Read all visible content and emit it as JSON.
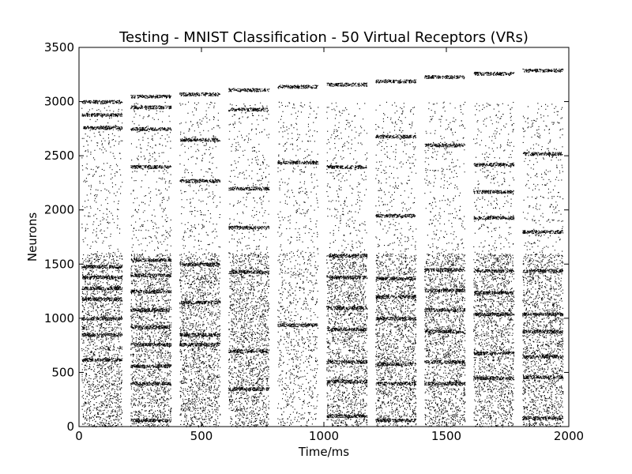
{
  "chart_data": {
    "type": "scatter",
    "title": "Testing - MNIST Classification - 50 Virtual Receptors (VRs)",
    "xlabel": "Time/ms",
    "ylabel": "Neurons",
    "xlim": [
      0,
      2000
    ],
    "ylim": [
      0,
      3500
    ],
    "xticks": [
      0,
      500,
      1000,
      1500,
      2000
    ],
    "yticks": [
      0,
      500,
      1000,
      1500,
      2000,
      2500,
      3000,
      3500
    ],
    "xtick_labels": [
      "0",
      "500",
      "1000",
      "1500",
      "2000"
    ],
    "ytick_labels": [
      "0",
      "500",
      "1000",
      "1500",
      "2000",
      "2500",
      "3000",
      "3500"
    ],
    "grid": false,
    "marker_color": "#000000",
    "stimulus_windows": [
      {
        "start": 0,
        "end": 200
      },
      {
        "start": 200,
        "end": 400
      },
      {
        "start": 400,
        "end": 600
      },
      {
        "start": 600,
        "end": 800
      },
      {
        "start": 800,
        "end": 1000
      },
      {
        "start": 1000,
        "end": 1200
      },
      {
        "start": 1200,
        "end": 1400
      },
      {
        "start": 1400,
        "end": 1600
      },
      {
        "start": 1600,
        "end": 1800
      },
      {
        "start": 1800,
        "end": 2000
      }
    ],
    "approx_dense_bands": [
      {
        "window": 0,
        "neurons": [
          3000,
          2880,
          2760,
          1480,
          1380,
          1280,
          1180,
          1000,
          850,
          620
        ]
      },
      {
        "window": 1,
        "neurons": [
          3050,
          2950,
          2750,
          2400,
          1540,
          1400,
          1250,
          1080,
          920,
          760,
          560,
          400,
          60
        ]
      },
      {
        "window": 2,
        "neurons": [
          3070,
          2650,
          2270,
          1500,
          1150,
          850,
          760
        ]
      },
      {
        "window": 3,
        "neurons": [
          3110,
          2930,
          2200,
          1840,
          1430,
          700,
          350
        ]
      },
      {
        "window": 4,
        "neurons": [
          3140,
          2440,
          940
        ]
      },
      {
        "window": 5,
        "neurons": [
          3160,
          2400,
          1580,
          1380,
          1100,
          900,
          600,
          420,
          100
        ]
      },
      {
        "window": 6,
        "neurons": [
          3190,
          2680,
          1950,
          1370,
          1200,
          1000,
          580,
          400,
          60
        ]
      },
      {
        "window": 7,
        "neurons": [
          3230,
          2600,
          1450,
          1260,
          1080,
          880,
          600,
          400
        ]
      },
      {
        "window": 8,
        "neurons": [
          3260,
          2420,
          2170,
          1930,
          1440,
          1240,
          1040,
          680,
          450
        ]
      },
      {
        "window": 9,
        "neurons": [
          3290,
          2520,
          1800,
          1440,
          1040,
          880,
          650,
          460,
          80
        ]
      }
    ]
  }
}
